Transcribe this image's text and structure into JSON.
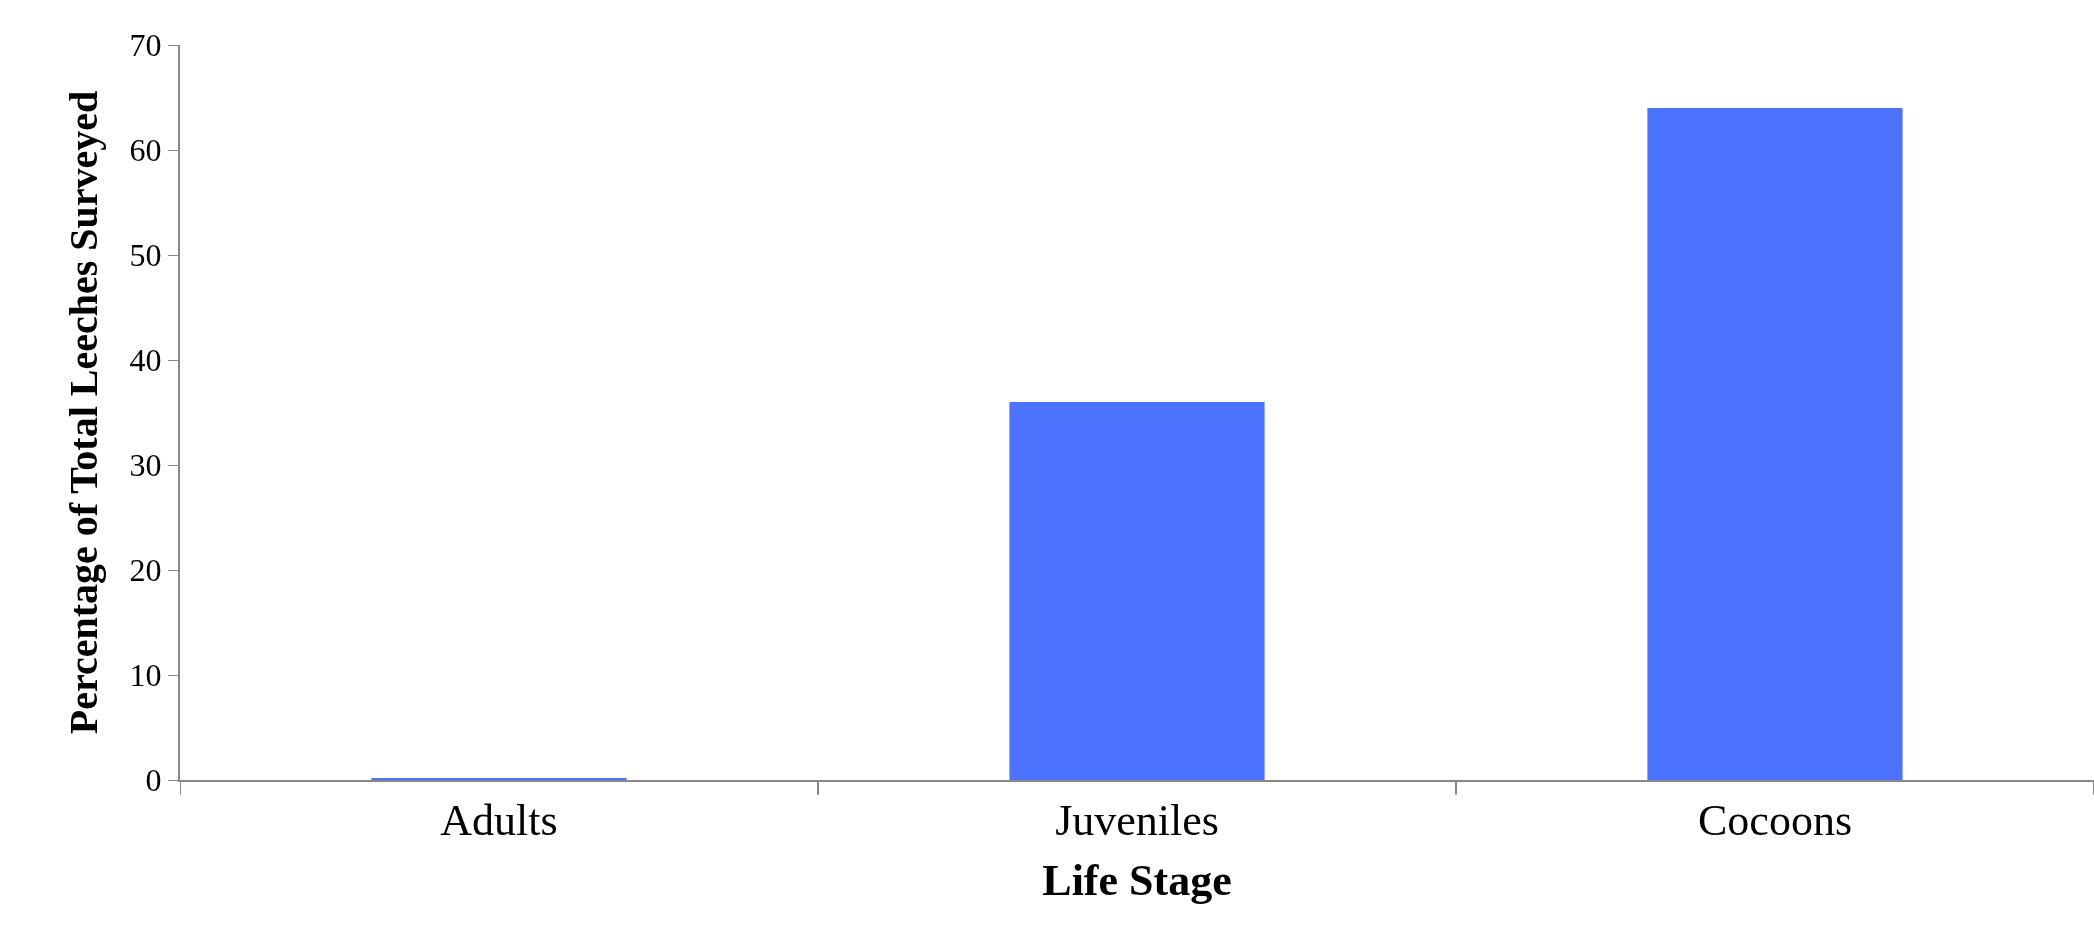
{
  "chart_data": {
    "type": "bar",
    "xlabel": "Life Stage",
    "ylabel": "Percentage of Total Leeches Surveyed",
    "categories": [
      "Adults",
      "Juveniles",
      "Cocoons"
    ],
    "values": [
      0.1,
      36,
      64
    ],
    "color": "#4d72fe",
    "ylim": [
      0,
      70
    ],
    "yticks": [
      0,
      10,
      20,
      30,
      40,
      50,
      60,
      70
    ],
    "grid": false
  }
}
